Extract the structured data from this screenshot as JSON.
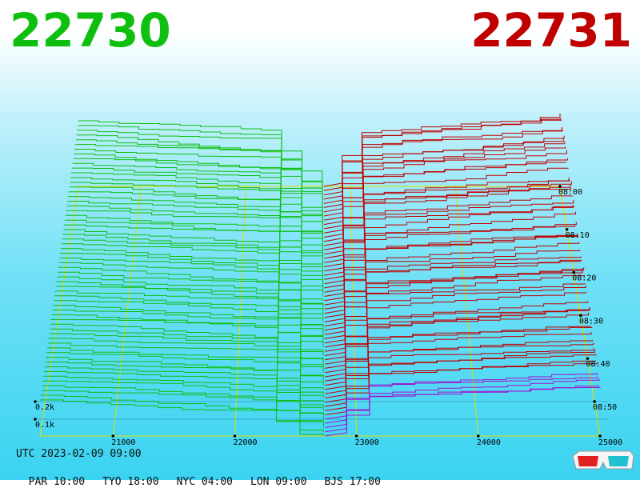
{
  "header": {
    "bid_price": "22730",
    "ask_price": "22731",
    "bid_color": "#0fbf10",
    "ask_color": "#c00000"
  },
  "chart_data": {
    "type": "area",
    "x_ticks": [
      "21000",
      "22000",
      "23000",
      "24000",
      "25000"
    ],
    "x_range": [
      20400,
      25000
    ],
    "depth_ticks": [
      "0.2k",
      "0.1k"
    ],
    "time_ticks": [
      "08:00",
      "08:10",
      "08:20",
      "08:30",
      "08:40",
      "08:50"
    ],
    "split_price": 22730,
    "snapshots": 60,
    "bid_color": "#0fbf10",
    "ask_color": "#c00000",
    "grid_color": "#e0e000",
    "grid": true
  },
  "footer": {
    "utc": "UTC 2023-02-09 09:00",
    "zones": [
      "PAR 10:00",
      "TYO 18:00",
      "NYC 04:00",
      "LON 09:00",
      "BJS 17:00"
    ]
  },
  "icons": {
    "glasses": "3d-glasses-icon"
  }
}
